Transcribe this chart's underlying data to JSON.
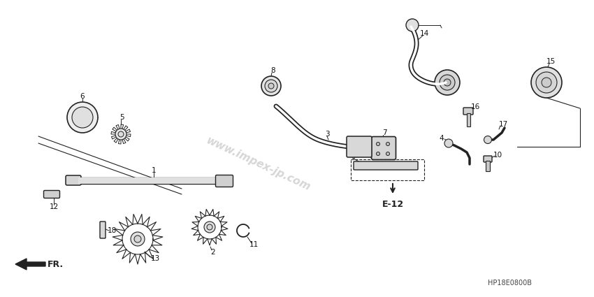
{
  "bg_color": "#ffffff",
  "line_color": "#222222",
  "label_color": "#111111",
  "watermark_text": "www.impex-jp.com",
  "watermark_color": "#bbbbbb",
  "part_code": "HP18E0800B",
  "direction_label": "FR.",
  "reference_label": "E-12",
  "figsize": [
    8.5,
    4.25
  ],
  "dpi": 100
}
